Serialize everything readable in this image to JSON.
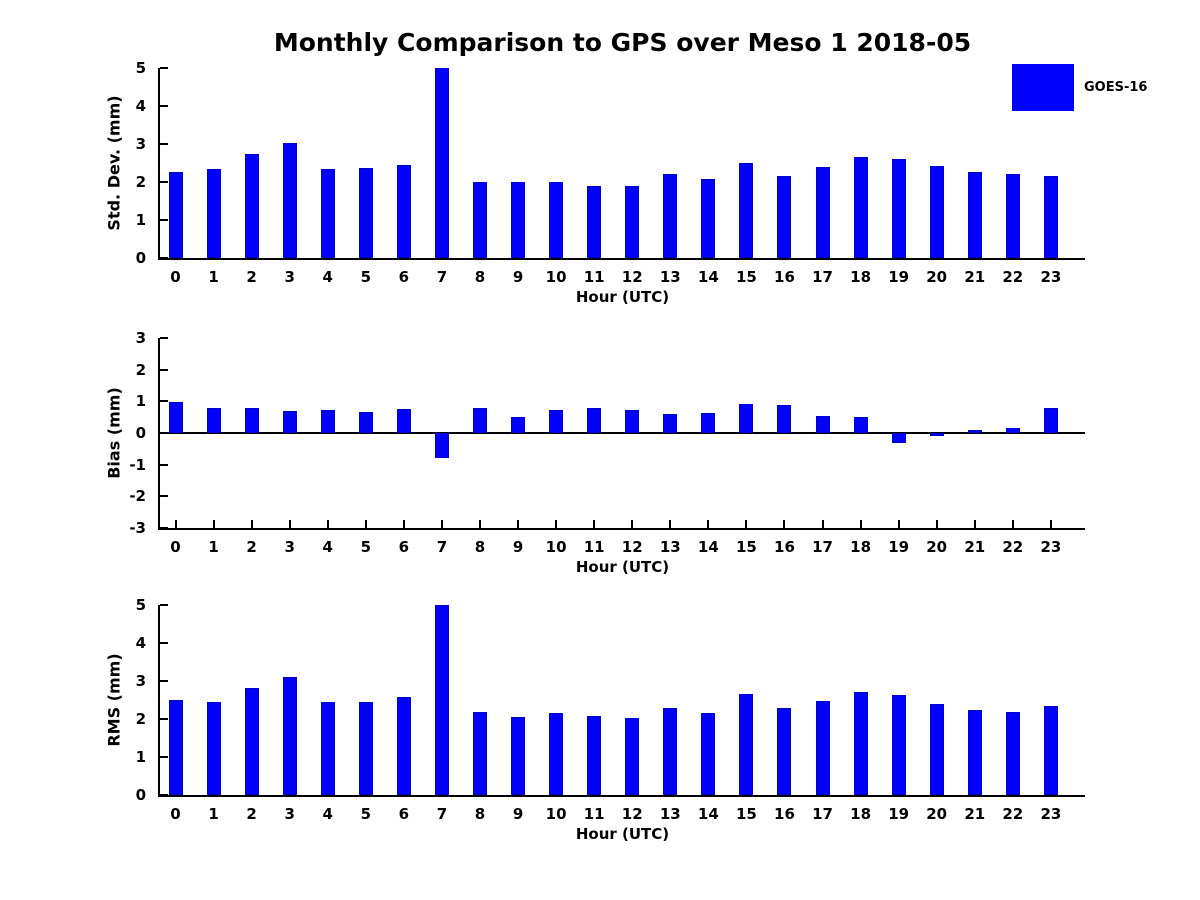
{
  "title": "Monthly Comparison to GPS over Meso 1 2018-05",
  "legend": {
    "label": "GOES-16",
    "color": "#0000ff",
    "position": "top-right"
  },
  "chart_data": [
    {
      "type": "bar",
      "name": "std-dev",
      "title": "",
      "ylabel": "Std. Dev. (mm)",
      "xlabel": "Hour (UTC)",
      "categories": [
        "0",
        "1",
        "2",
        "3",
        "4",
        "5",
        "6",
        "7",
        "8",
        "9",
        "10",
        "11",
        "12",
        "13",
        "14",
        "15",
        "16",
        "17",
        "18",
        "19",
        "20",
        "21",
        "22",
        "23"
      ],
      "series": [
        {
          "name": "GOES-16",
          "values": [
            2.27,
            2.35,
            2.74,
            3.03,
            2.35,
            2.38,
            2.45,
            5,
            2.01,
            2.0,
            2.01,
            1.9,
            1.9,
            2.2,
            2.09,
            2.5,
            2.15,
            2.4,
            2.65,
            2.6,
            2.42,
            2.27,
            2.2,
            2.16
          ]
        }
      ],
      "ylim": [
        0,
        5
      ],
      "yticks": [
        0,
        1,
        2,
        3,
        4,
        5
      ],
      "xlim": [
        -0.5,
        24
      ],
      "grid": false,
      "bar_color": "#0000ff",
      "x_axis_ticks_visible": false,
      "zero_line": false
    },
    {
      "type": "bar",
      "name": "bias",
      "title": "",
      "ylabel": "Bias (mm)",
      "xlabel": "Hour (UTC)",
      "categories": [
        "0",
        "1",
        "2",
        "3",
        "4",
        "5",
        "6",
        "7",
        "8",
        "9",
        "10",
        "11",
        "12",
        "13",
        "14",
        "15",
        "16",
        "17",
        "18",
        "19",
        "20",
        "21",
        "22",
        "23"
      ],
      "series": [
        {
          "name": "GOES-16",
          "values": [
            0.97,
            0.78,
            0.78,
            0.68,
            0.72,
            0.65,
            0.75,
            -0.8,
            0.8,
            0.5,
            0.72,
            0.8,
            0.72,
            0.6,
            0.62,
            0.93,
            0.9,
            0.55,
            0.5,
            -0.3,
            -0.08,
            0.08,
            0.16,
            0.8
          ]
        }
      ],
      "ylim": [
        -3,
        3
      ],
      "yticks": [
        3,
        2,
        1,
        0,
        -1,
        -2,
        -3
      ],
      "xlim": [
        -0.5,
        24
      ],
      "grid": false,
      "bar_color": "#0000ff",
      "x_axis_ticks_visible": true,
      "zero_line": true
    },
    {
      "type": "bar",
      "name": "rms",
      "title": "",
      "ylabel": "RMS (mm)",
      "xlabel": "Hour (UTC)",
      "categories": [
        "0",
        "1",
        "2",
        "3",
        "4",
        "5",
        "6",
        "7",
        "8",
        "9",
        "10",
        "11",
        "12",
        "13",
        "14",
        "15",
        "16",
        "17",
        "18",
        "19",
        "20",
        "21",
        "22",
        "23"
      ],
      "series": [
        {
          "name": "GOES-16",
          "values": [
            2.5,
            2.46,
            2.82,
            3.1,
            2.46,
            2.46,
            2.57,
            5,
            2.18,
            2.05,
            2.16,
            2.08,
            2.02,
            2.28,
            2.15,
            2.67,
            2.3,
            2.47,
            2.7,
            2.62,
            2.4,
            2.25,
            2.18,
            2.33
          ]
        }
      ],
      "ylim": [
        0,
        5
      ],
      "yticks": [
        0,
        1,
        2,
        3,
        4,
        5
      ],
      "xlim": [
        -0.5,
        24
      ],
      "grid": false,
      "bar_color": "#0000ff",
      "x_axis_ticks_visible": false,
      "zero_line": false
    }
  ]
}
